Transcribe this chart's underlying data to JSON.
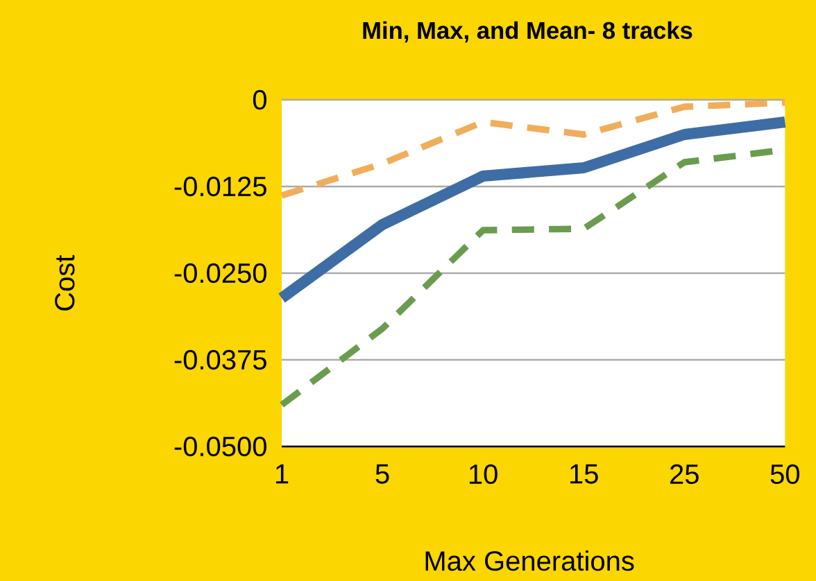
{
  "chart_data": {
    "type": "line",
    "title": "Min, Max, and Mean- 8 tracks",
    "xlabel": "Max Generations",
    "ylabel": "Cost",
    "categories": [
      "1",
      "5",
      "10",
      "15",
      "25",
      "50"
    ],
    "series": [
      {
        "color": "#3d6da4",
        "line_style": "solid",
        "values": [
          -0.0286,
          -0.018,
          -0.011,
          -0.0098,
          -0.005,
          -0.0032
        ]
      },
      {
        "color": "#f0ad5a",
        "line_style": "dashed",
        "values": [
          -0.0138,
          -0.0092,
          -0.0032,
          -0.005,
          -0.001,
          -0.0004
        ]
      },
      {
        "color": "#6a9c4e",
        "line_style": "dashed",
        "values": [
          -0.044,
          -0.033,
          -0.0188,
          -0.0186,
          -0.009,
          -0.0072
        ]
      }
    ],
    "ylim": [
      -0.05,
      0
    ],
    "yticks": [
      {
        "value": 0,
        "label": "0"
      },
      {
        "value": -0.0125,
        "label": "-0.0125"
      },
      {
        "value": -0.025,
        "label": "-0.0250"
      },
      {
        "value": -0.0375,
        "label": "-0.0375"
      },
      {
        "value": -0.05,
        "label": "-0.0500"
      }
    ],
    "grid": "y",
    "marker": "none"
  }
}
